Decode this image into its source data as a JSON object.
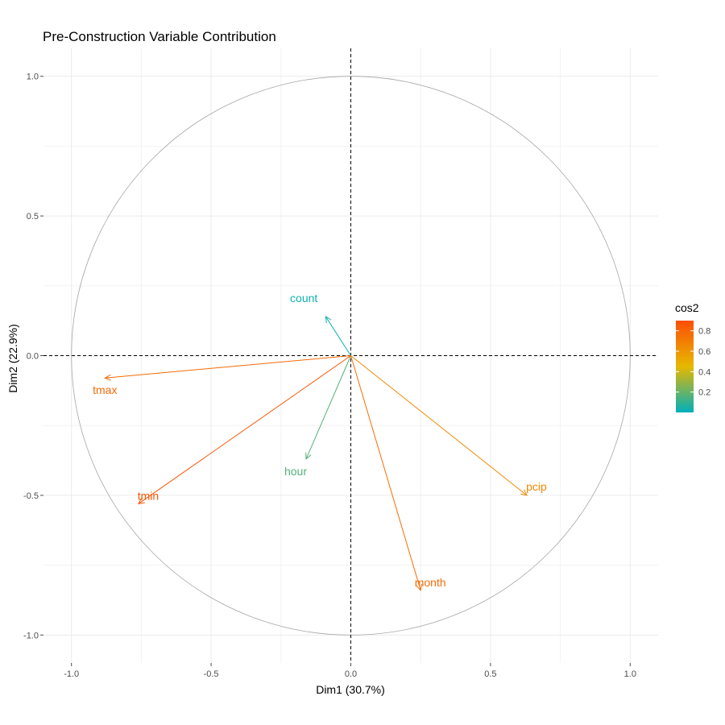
{
  "chart_data": {
    "type": "scatter",
    "subtype": "pca-variable-correlation-circle",
    "title": "Pre-Construction Variable Contribution",
    "xlabel": "Dim1 (30.7%)",
    "ylabel": "Dim2 (22.9%)",
    "xlim": [
      -1.1,
      1.1
    ],
    "ylim": [
      -1.1,
      1.1
    ],
    "xticks": [
      -1.0,
      -0.5,
      0.0,
      0.5,
      1.0
    ],
    "yticks": [
      -1.0,
      -0.5,
      0.0,
      0.5,
      1.0
    ],
    "xtick_labels": [
      "-1.0",
      "-0.5",
      "0.0",
      "0.5",
      "1.0"
    ],
    "ytick_labels": [
      "-1.0",
      "-0.5",
      "0.0",
      "0.5",
      "1.0"
    ],
    "grid": true,
    "unit_circle": true,
    "reference_lines": {
      "x": 0,
      "y": 0,
      "style": "dashed"
    },
    "variables": [
      {
        "label": "count",
        "x": -0.09,
        "y": 0.14,
        "cos2": 0.03
      },
      {
        "label": "tmax",
        "x": -0.88,
        "y": -0.08,
        "cos2": 0.78
      },
      {
        "label": "tmin",
        "x": -0.76,
        "y": -0.53,
        "cos2": 0.86
      },
      {
        "label": "hour",
        "x": -0.16,
        "y": -0.37,
        "cos2": 0.16
      },
      {
        "label": "pcip",
        "x": 0.63,
        "y": -0.5,
        "cos2": 0.65
      },
      {
        "label": "month",
        "x": 0.25,
        "y": -0.84,
        "cos2": 0.77
      }
    ],
    "legend": {
      "title": "cos2",
      "position": "right",
      "ticks": [
        0.2,
        0.4,
        0.6,
        0.8
      ],
      "tick_labels": [
        "0.2",
        "0.4",
        "0.6",
        "0.8"
      ],
      "range": [
        0.0,
        0.9
      ],
      "gradient": {
        "low": "#00AFBB",
        "mid": "#E7B800",
        "high": "#FC4E07",
        "midpoint": 0.45
      }
    }
  }
}
